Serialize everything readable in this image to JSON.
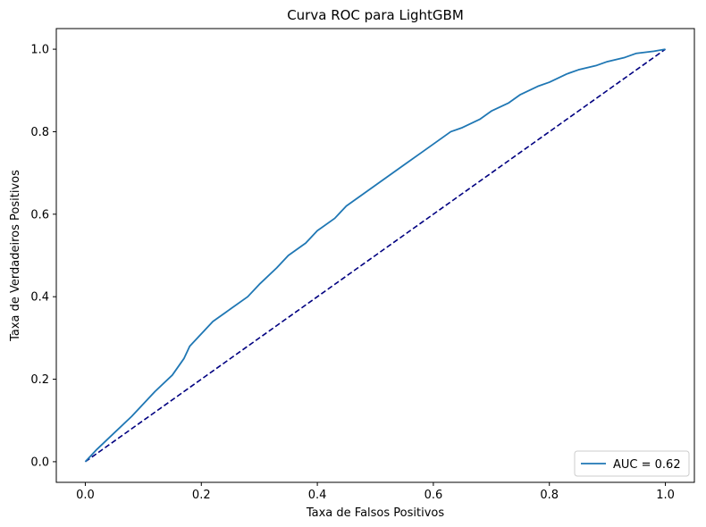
{
  "chart_data": {
    "type": "line",
    "title": "Curva ROC para LightGBM",
    "xlabel": "Taxa de Falsos Positivos",
    "ylabel": "Taxa de Verdadeiros Positivos",
    "xlim": [
      -0.05,
      1.05
    ],
    "ylim": [
      -0.05,
      1.05
    ],
    "xticks": [
      0.0,
      0.2,
      0.4,
      0.6,
      0.8,
      1.0
    ],
    "xtick_labels": [
      "0.0",
      "0.2",
      "0.4",
      "0.6",
      "0.8",
      "1.0"
    ],
    "yticks": [
      0.0,
      0.2,
      0.4,
      0.6,
      0.8,
      1.0
    ],
    "ytick_labels": [
      "0.0",
      "0.2",
      "0.4",
      "0.6",
      "0.8",
      "1.0"
    ],
    "grid": false,
    "legend_position": "lower-right",
    "series": [
      {
        "name": "AUC = 0.62",
        "color": "#1f77b4",
        "style": "solid",
        "x": [
          0.0,
          0.02,
          0.05,
          0.08,
          0.1,
          0.12,
          0.15,
          0.17,
          0.18,
          0.2,
          0.22,
          0.25,
          0.28,
          0.3,
          0.33,
          0.35,
          0.38,
          0.4,
          0.43,
          0.45,
          0.48,
          0.5,
          0.53,
          0.55,
          0.58,
          0.6,
          0.63,
          0.65,
          0.68,
          0.7,
          0.73,
          0.75,
          0.78,
          0.8,
          0.83,
          0.85,
          0.88,
          0.9,
          0.93,
          0.95,
          0.98,
          1.0
        ],
        "y": [
          0.0,
          0.03,
          0.07,
          0.11,
          0.14,
          0.17,
          0.21,
          0.25,
          0.28,
          0.31,
          0.34,
          0.37,
          0.4,
          0.43,
          0.47,
          0.5,
          0.53,
          0.56,
          0.59,
          0.62,
          0.65,
          0.67,
          0.7,
          0.72,
          0.75,
          0.77,
          0.8,
          0.81,
          0.83,
          0.85,
          0.87,
          0.89,
          0.91,
          0.92,
          0.94,
          0.95,
          0.96,
          0.97,
          0.98,
          0.99,
          0.995,
          1.0
        ]
      },
      {
        "name": "",
        "color": "#000080",
        "style": "dashed",
        "x": [
          0.0,
          1.0
        ],
        "y": [
          0.0,
          1.0
        ]
      }
    ]
  }
}
